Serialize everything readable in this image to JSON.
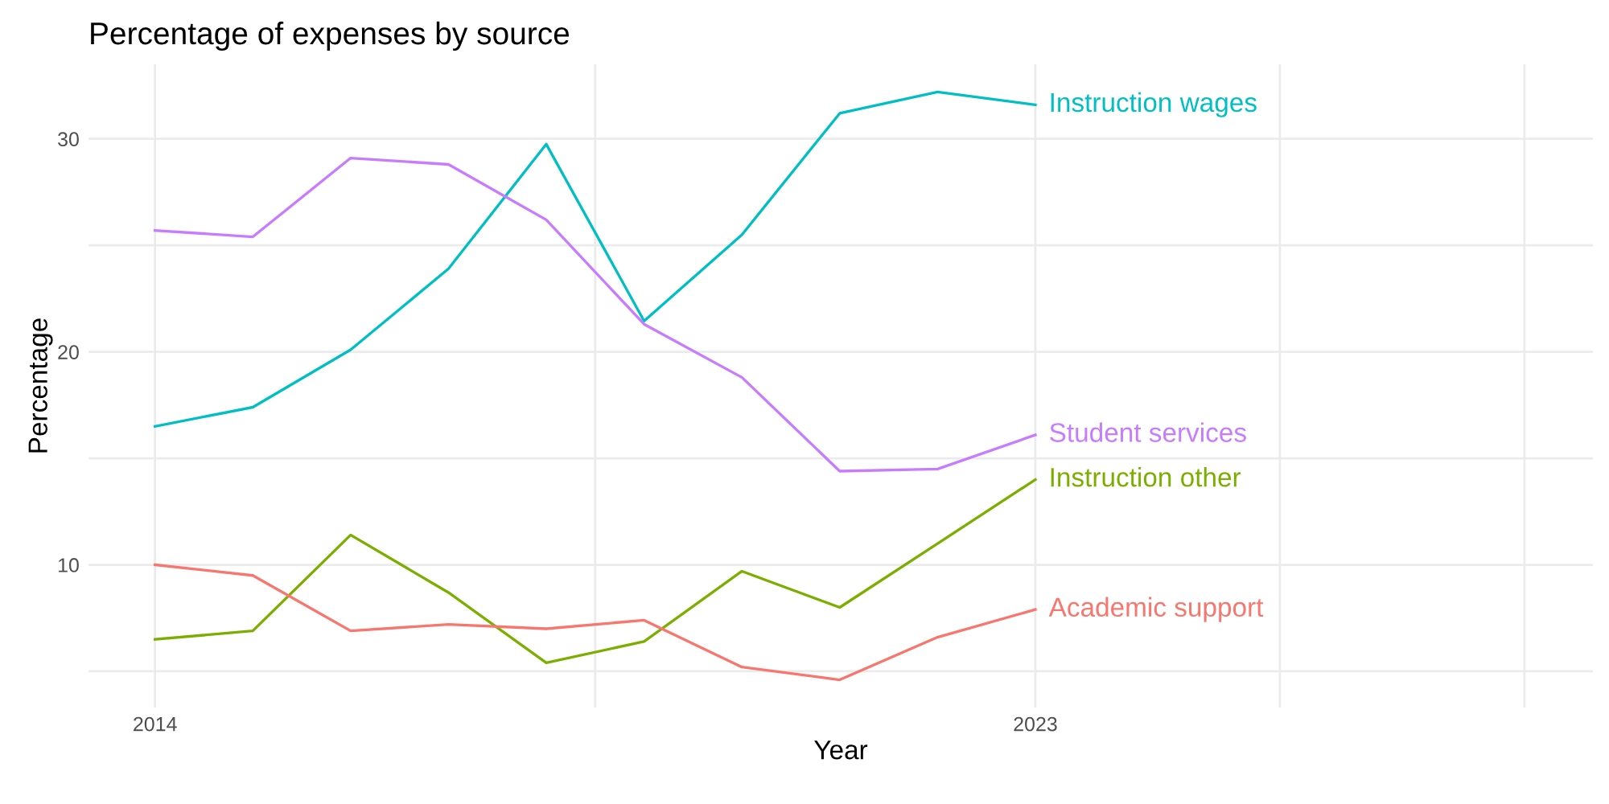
{
  "chart_data": {
    "type": "line",
    "title": "Percentage of expenses by source",
    "xlabel": "Year",
    "ylabel": "Percentage",
    "x": [
      2014,
      2015,
      2016,
      2017,
      2018,
      2019,
      2020,
      2021,
      2022,
      2023
    ],
    "series": [
      {
        "name": "Instruction wages",
        "color": "#00bfc4",
        "values": [
          16.5,
          17.4,
          20.1,
          23.9,
          29.75,
          21.45,
          25.5,
          31.2,
          32.2,
          31.6
        ]
      },
      {
        "name": "Student services",
        "color": "#c77cff",
        "values": [
          25.7,
          25.4,
          29.1,
          28.8,
          26.2,
          21.3,
          18.8,
          14.4,
          14.5,
          16.1
        ]
      },
      {
        "name": "Instruction other",
        "color": "#7cae00",
        "values": [
          6.5,
          6.9,
          11.4,
          8.7,
          5.4,
          6.4,
          9.7,
          8.0,
          11.0,
          14.0
        ]
      },
      {
        "name": "Academic support",
        "color": "#f8766d",
        "values": [
          10.0,
          9.5,
          6.9,
          7.2,
          7.0,
          7.4,
          5.2,
          4.6,
          6.6,
          7.9
        ]
      }
    ],
    "xlim": [
      2013.32,
      2028.7
    ],
    "ylim": [
      3.3,
      33.5
    ],
    "xticks": [
      2014,
      {
        "value": 2018.5,
        "label": null
      },
      2023,
      {
        "value": 2025.5,
        "label": null
      },
      {
        "value": 2028,
        "label": null
      }
    ],
    "yticks": [
      {
        "value": 5,
        "label": null
      },
      10,
      {
        "value": 15,
        "label": null
      },
      20,
      {
        "value": 25,
        "label": null
      },
      30
    ],
    "grid": true,
    "legend": false,
    "marker": "none",
    "line_style": "solid"
  }
}
